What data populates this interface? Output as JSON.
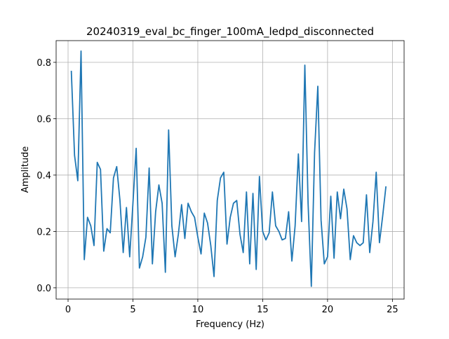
{
  "chart_data": {
    "type": "line",
    "title": "20240319_eval_bc_finger_100mA_ledpd_disconnected",
    "xlabel": "Frequency (Hz)",
    "ylabel": "Amplitude",
    "x": [
      0.25,
      0.5,
      0.75,
      1.0,
      1.25,
      1.5,
      1.75,
      2.0,
      2.25,
      2.5,
      2.75,
      3.0,
      3.25,
      3.5,
      3.75,
      4.0,
      4.25,
      4.5,
      4.75,
      5.0,
      5.25,
      5.5,
      5.75,
      6.0,
      6.25,
      6.5,
      6.75,
      7.0,
      7.25,
      7.5,
      7.75,
      8.0,
      8.25,
      8.5,
      8.75,
      9.0,
      9.25,
      9.5,
      9.75,
      10.0,
      10.25,
      10.5,
      10.75,
      11.0,
      11.25,
      11.5,
      11.75,
      12.0,
      12.25,
      12.5,
      12.75,
      13.0,
      13.25,
      13.5,
      13.75,
      14.0,
      14.25,
      14.5,
      14.75,
      15.0,
      15.25,
      15.5,
      15.75,
      16.0,
      16.25,
      16.5,
      16.75,
      17.0,
      17.25,
      17.5,
      17.75,
      18.0,
      18.25,
      18.5,
      18.75,
      19.0,
      19.25,
      19.5,
      19.75,
      20.0,
      20.25,
      20.5,
      20.75,
      21.0,
      21.25,
      21.5,
      21.75,
      22.0,
      22.25,
      22.5,
      22.75,
      23.0,
      23.25,
      23.5,
      23.75,
      24.0,
      24.25,
      24.5
    ],
    "series": [
      {
        "color": "#1f77b4",
        "values": [
          0.77,
          0.47,
          0.38,
          0.84,
          0.1,
          0.25,
          0.22,
          0.15,
          0.445,
          0.42,
          0.13,
          0.21,
          0.195,
          0.39,
          0.43,
          0.31,
          0.125,
          0.285,
          0.11,
          0.3,
          0.495,
          0.07,
          0.11,
          0.18,
          0.425,
          0.085,
          0.27,
          0.365,
          0.3,
          0.055,
          0.56,
          0.22,
          0.11,
          0.19,
          0.295,
          0.175,
          0.3,
          0.27,
          0.25,
          0.18,
          0.12,
          0.265,
          0.23,
          0.15,
          0.04,
          0.31,
          0.39,
          0.41,
          0.155,
          0.25,
          0.3,
          0.31,
          0.19,
          0.125,
          0.34,
          0.085,
          0.335,
          0.065,
          0.395,
          0.2,
          0.17,
          0.195,
          0.34,
          0.22,
          0.2,
          0.17,
          0.175,
          0.27,
          0.095,
          0.22,
          0.475,
          0.235,
          0.79,
          0.3,
          0.005,
          0.48,
          0.715,
          0.24,
          0.085,
          0.11,
          0.325,
          0.105,
          0.34,
          0.245,
          0.35,
          0.28,
          0.1,
          0.185,
          0.16,
          0.15,
          0.16,
          0.33,
          0.125,
          0.235,
          0.41,
          0.16,
          0.255,
          0.36
        ]
      }
    ],
    "xlim": [
      -0.92,
      25.9
    ],
    "ylim": [
      -0.04,
      0.877
    ],
    "xticks": [
      0,
      5,
      10,
      15,
      20,
      25
    ],
    "yticks": [
      {
        "value": 0,
        "label": "0.0"
      },
      0.2,
      0.4,
      0.6,
      0.8
    ],
    "grid": true
  }
}
